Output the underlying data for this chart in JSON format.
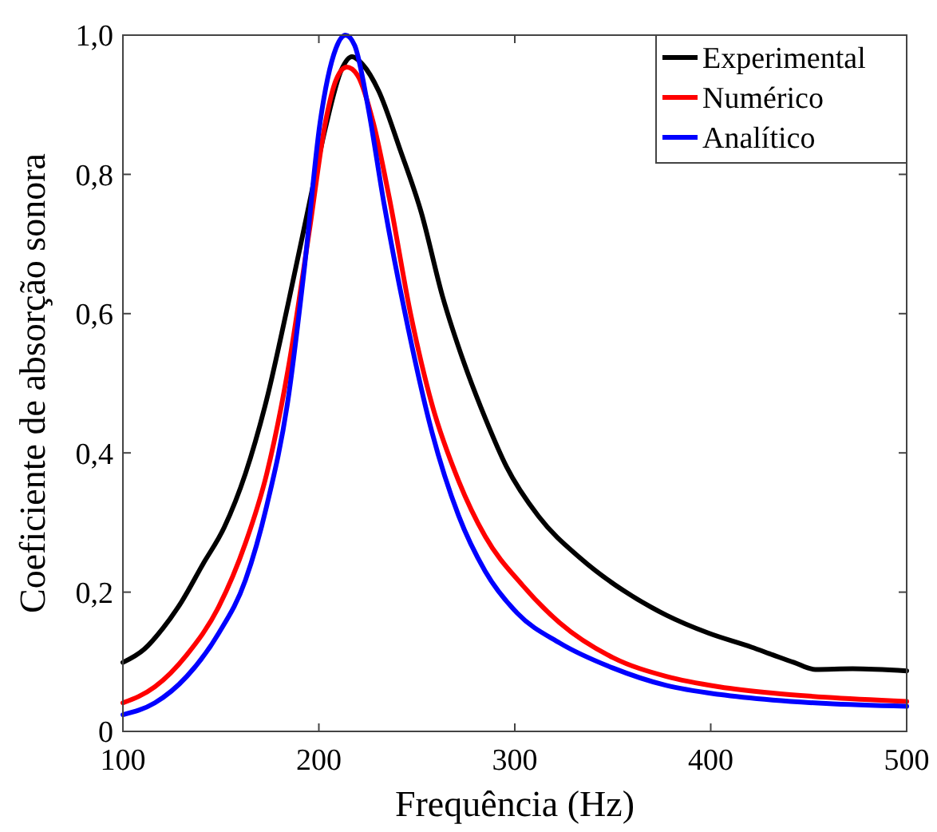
{
  "chart_data": {
    "type": "line",
    "xlabel": "Frequência (Hz)",
    "ylabel": "Coeficiente de absorção sonora",
    "xlim": [
      100,
      500
    ],
    "ylim": [
      0,
      1
    ],
    "xticks": [
      100,
      200,
      300,
      400,
      500
    ],
    "yticks": [
      0,
      {
        "value": 0.2,
        "label": "0,2"
      },
      {
        "value": 0.4,
        "label": "0,4"
      },
      {
        "value": 0.6,
        "label": "0,6"
      },
      {
        "value": 0.8,
        "label": "0,8"
      },
      {
        "value": 1,
        "label": "1,0"
      }
    ],
    "legend": "top right",
    "grid": false,
    "marker": "none",
    "line_style": "solid",
    "series": [
      {
        "name": "Experimental",
        "color": "#000000",
        "x": [
          100,
          110.9,
          120.4,
          129.9,
          140.8,
          151.7,
          162.5,
          173.4,
          184.3,
          195.2,
          203.3,
          211.5,
          216.9,
          222.3,
          230.5,
          241.4,
          252.3,
          263.1,
          274,
          284.9,
          295.8,
          312.1,
          333.8,
          355.6,
          377.3,
          399,
          420.8,
          431.6,
          442.5,
          453.4,
          472.4,
          500
        ],
        "values": [
          0.099,
          0.118,
          0.148,
          0.186,
          0.24,
          0.293,
          0.37,
          0.477,
          0.614,
          0.759,
          0.866,
          0.95,
          0.969,
          0.958,
          0.92,
          0.836,
          0.745,
          0.625,
          0.53,
          0.45,
          0.38,
          0.309,
          0.248,
          0.202,
          0.167,
          0.141,
          0.121,
          0.11,
          0.099,
          0.089,
          0.09,
          0.087
        ]
      },
      {
        "name": "Numérico",
        "color": "#ff0000",
        "x": [
          100,
          116.3,
          132.6,
          148.9,
          162.5,
          173.4,
          184.3,
          195.2,
          203.3,
          208.7,
          214.2,
          219.6,
          227.8,
          235.9,
          246.8,
          257.7,
          271.3,
          284.9,
          303.9,
          322.9,
          350.1,
          377.3,
          404.5,
          431.6,
          458.8,
          500
        ],
        "values": [
          0.041,
          0.064,
          0.11,
          0.179,
          0.27,
          0.37,
          0.52,
          0.72,
          0.874,
          0.935,
          0.954,
          0.943,
          0.874,
          0.767,
          0.6,
          0.47,
          0.36,
          0.28,
          0.21,
          0.156,
          0.106,
          0.079,
          0.064,
          0.055,
          0.049,
          0.043
        ]
      },
      {
        "name": "Analítico",
        "color": "#0000ff",
        "x": [
          100,
          116.3,
          132.6,
          148.9,
          162.5,
          173.4,
          184.3,
          192.4,
          200.6,
          208.7,
          213.6,
          218.3,
          225.1,
          233.2,
          244.1,
          257.7,
          271.3,
          284.9,
          301.2,
          322.9,
          350.1,
          377.3,
          404.5,
          431.6,
          458.8,
          500
        ],
        "values": [
          0.024,
          0.041,
          0.079,
          0.141,
          0.217,
          0.324,
          0.477,
          0.66,
          0.874,
          0.981,
          1.0,
          0.985,
          0.897,
          0.759,
          0.599,
          0.43,
          0.31,
          0.23,
          0.17,
          0.127,
          0.091,
          0.066,
          0.053,
          0.045,
          0.04,
          0.036
        ]
      }
    ]
  }
}
